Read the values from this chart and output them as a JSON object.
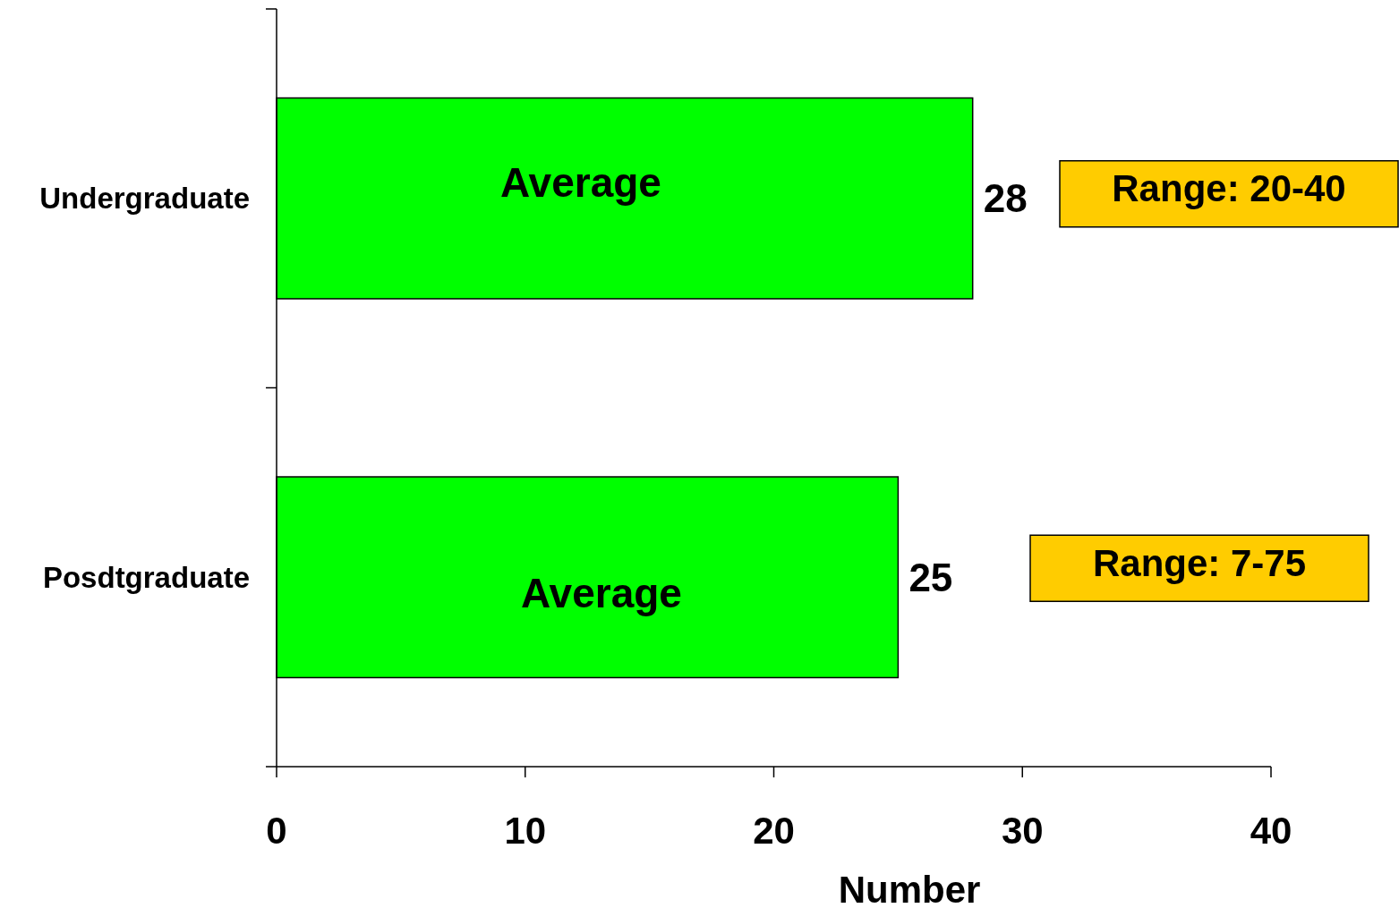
{
  "chart_data": {
    "type": "bar",
    "orientation": "horizontal",
    "categories": [
      "Undergraduate",
      "Posdtgraduate"
    ],
    "values": [
      28,
      25
    ],
    "color": "#00ff00",
    "xlim": [
      0,
      40
    ],
    "xticks": [
      0,
      10,
      20,
      30,
      40
    ],
    "xlabel": "Number",
    "data_labels": true,
    "grid": false,
    "annotations": [
      "Average",
      "Range: 20-40",
      "Average",
      "Range: 7-75"
    ]
  }
}
